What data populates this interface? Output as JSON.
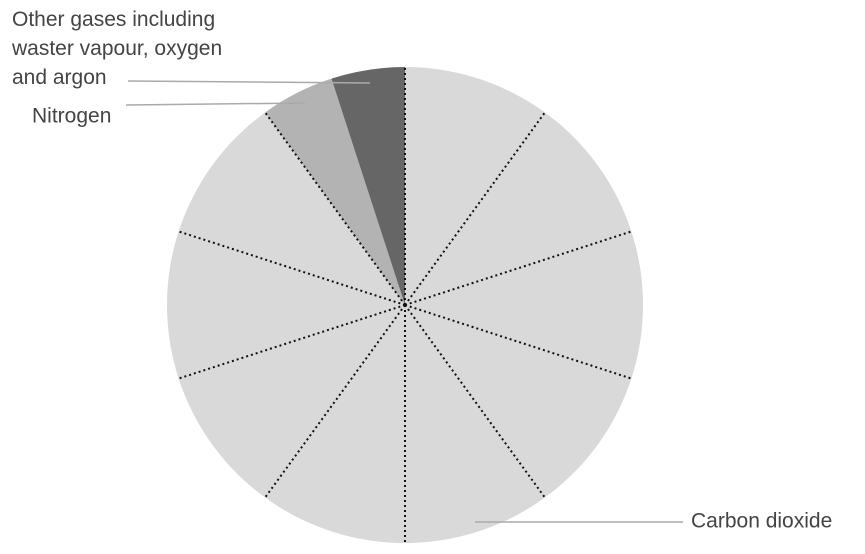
{
  "chart_data": {
    "type": "pie",
    "categories": [
      "Carbon dioxide",
      "Nitrogen",
      "Other gases including waster vapour, oxygen and argon"
    ],
    "values": [
      90,
      5,
      5
    ],
    "colors": [
      "#d9d9d9",
      "#b3b3b3",
      "#666666"
    ]
  }
}
